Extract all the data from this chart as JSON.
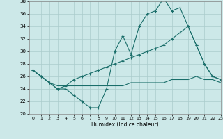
{
  "xlabel": "Humidex (Indice chaleur)",
  "xlim": [
    -0.5,
    23
  ],
  "ylim": [
    20,
    38
  ],
  "yticks": [
    20,
    22,
    24,
    26,
    28,
    30,
    32,
    34,
    36,
    38
  ],
  "xticks": [
    0,
    1,
    2,
    3,
    4,
    5,
    6,
    7,
    8,
    9,
    10,
    11,
    12,
    13,
    14,
    15,
    16,
    17,
    18,
    19,
    20,
    21,
    22,
    23
  ],
  "bg_color": "#cce8e8",
  "line_color": "#1a6e6a",
  "grid_color": "#aacccc",
  "line1_x": [
    0,
    1,
    2,
    3,
    4,
    5,
    6,
    7,
    8,
    9,
    10,
    11,
    12,
    13,
    14,
    15,
    16,
    17,
    18,
    19,
    20,
    21,
    22,
    23
  ],
  "line1_y": [
    27,
    26,
    25,
    24,
    24,
    23,
    22,
    21,
    21,
    24,
    30,
    32.5,
    29.5,
    34,
    36,
    36.5,
    38.5,
    36.5,
    37,
    34,
    31,
    28,
    26,
    25.5
  ],
  "line2_x": [
    0,
    1,
    2,
    3,
    4,
    5,
    6,
    7,
    8,
    9,
    10,
    11,
    12,
    13,
    14,
    15,
    16,
    17,
    18,
    19,
    20,
    21,
    22,
    23
  ],
  "line2_y": [
    27,
    26,
    25,
    24,
    24.5,
    25.5,
    26,
    26.5,
    27,
    27.5,
    28,
    28.5,
    29,
    29.5,
    30,
    30.5,
    31,
    32,
    33,
    34,
    31,
    28,
    26,
    25.5
  ],
  "line3_x": [
    0,
    1,
    2,
    3,
    4,
    5,
    6,
    7,
    8,
    9,
    10,
    11,
    12,
    13,
    14,
    15,
    16,
    17,
    18,
    19,
    20,
    21,
    22,
    23
  ],
  "line3_y": [
    27,
    26,
    25,
    24.5,
    24.5,
    24.5,
    24.5,
    24.5,
    24.5,
    24.5,
    24.5,
    24.5,
    25,
    25,
    25,
    25,
    25,
    25.5,
    25.5,
    25.5,
    26,
    25.5,
    25.5,
    25
  ]
}
